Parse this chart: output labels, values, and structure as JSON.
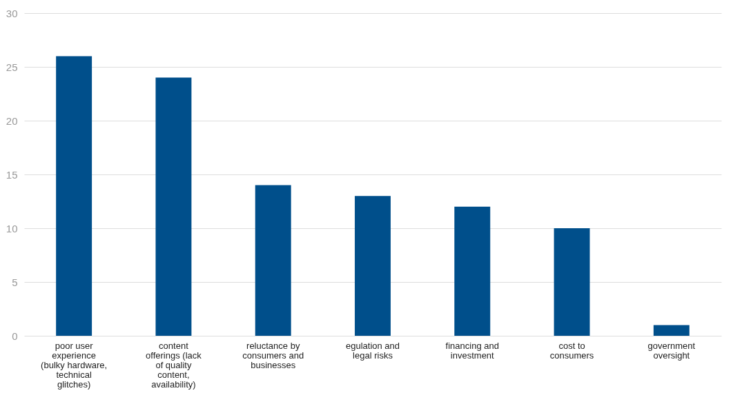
{
  "chart_data": {
    "type": "bar",
    "categories": [
      "poor user experience (bulky hardware, technical glitches)",
      "content offerings (lack of quality content, availability)",
      "reluctance by consumers and businesses",
      "egulation and legal risks",
      "financing and investment",
      "cost to consumers",
      "government oversight"
    ],
    "values": [
      26,
      24,
      14,
      13,
      12,
      10,
      1
    ],
    "color": "#004f8b",
    "ylim": [
      0,
      30
    ],
    "yticks": [
      0,
      5,
      10,
      15,
      20,
      25,
      30
    ],
    "grid": "y"
  }
}
